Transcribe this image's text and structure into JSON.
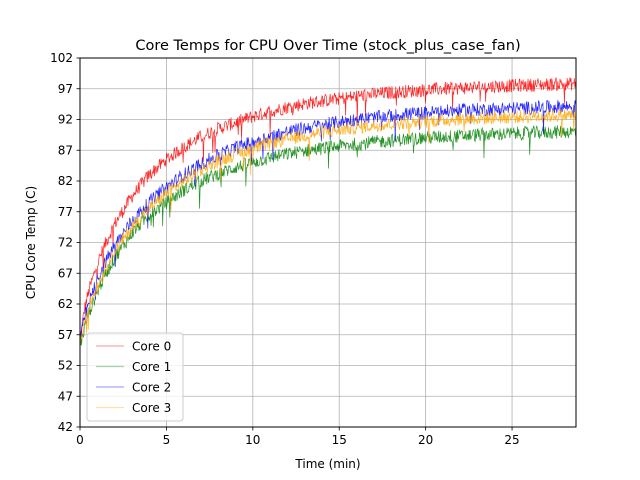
{
  "chart_data": {
    "type": "line",
    "title": "Core Temps for CPU Over Time (stock_plus_case_fan)",
    "xlabel": "Time (min)",
    "ylabel": "CPU Core Temp (C)",
    "xlim": [
      0,
      28.7
    ],
    "ylim": [
      42,
      102
    ],
    "xticks": [
      0,
      5,
      10,
      15,
      20,
      25
    ],
    "yticks": [
      42,
      47,
      52,
      57,
      62,
      67,
      72,
      77,
      82,
      87,
      92,
      97,
      102
    ],
    "grid": true,
    "legend_position": "lower-left",
    "series": [
      {
        "name": "Core 0",
        "color": "#ff0000",
        "x": [
          0,
          0.25,
          0.5,
          1,
          1.5,
          2,
          3,
          4,
          5,
          6,
          7,
          8,
          9,
          10,
          11,
          12,
          13,
          14,
          15,
          16,
          17,
          18,
          19,
          20,
          21,
          22,
          23,
          24,
          25,
          26,
          27,
          28,
          28.7
        ],
        "y": [
          56,
          61,
          64,
          68.5,
          72,
          75,
          79.5,
          83,
          85.5,
          87.5,
          89.2,
          90.5,
          91.5,
          92.5,
          93.3,
          94,
          94.6,
          95,
          95.4,
          95.8,
          96.1,
          96.4,
          96.6,
          96.8,
          97,
          97.1,
          97.3,
          97.4,
          97.5,
          97.6,
          97.7,
          97.8,
          97.8
        ]
      },
      {
        "name": "Core 1",
        "color": "#008000",
        "x": [
          0,
          0.25,
          0.5,
          1,
          1.5,
          2,
          3,
          4,
          5,
          6,
          7,
          8,
          9,
          10,
          11,
          12,
          13,
          14,
          15,
          16,
          17,
          18,
          19,
          20,
          21,
          22,
          23,
          24,
          25,
          26,
          27,
          28,
          28.7
        ],
        "y": [
          55,
          58,
          60.5,
          64,
          67,
          69.5,
          73.5,
          76.5,
          78.5,
          80.5,
          82,
          83.2,
          84.2,
          85,
          85.8,
          86.4,
          86.9,
          87.3,
          87.7,
          88,
          88.3,
          88.6,
          88.8,
          89,
          89.2,
          89.3,
          89.5,
          89.6,
          89.7,
          89.8,
          89.9,
          90,
          90
        ]
      },
      {
        "name": "Core 2",
        "color": "#0000ff",
        "x": [
          0,
          0.25,
          0.5,
          1,
          1.5,
          2,
          3,
          4,
          5,
          6,
          7,
          8,
          9,
          10,
          11,
          12,
          13,
          14,
          15,
          16,
          17,
          18,
          19,
          20,
          21,
          22,
          23,
          24,
          25,
          26,
          27,
          28,
          28.7
        ],
        "y": [
          56,
          59.5,
          62,
          66,
          69,
          71.5,
          75.5,
          78.5,
          81,
          83,
          84.8,
          86.2,
          87.4,
          88.4,
          89.2,
          90,
          90.6,
          91.1,
          91.6,
          92,
          92.3,
          92.6,
          92.9,
          93.1,
          93.3,
          93.5,
          93.6,
          93.7,
          93.8,
          93.9,
          94,
          94.1,
          94.1
        ]
      },
      {
        "name": "Core 3",
        "color": "#ffa500",
        "x": [
          0,
          0.25,
          0.5,
          1,
          1.5,
          2,
          3,
          4,
          5,
          6,
          7,
          8,
          9,
          10,
          11,
          12,
          13,
          14,
          15,
          16,
          17,
          18,
          19,
          20,
          21,
          22,
          23,
          24,
          25,
          26,
          27,
          28,
          28.7
        ],
        "y": [
          55.5,
          59,
          61.5,
          65,
          68,
          70.5,
          74.5,
          77.5,
          80,
          82,
          83.8,
          85.2,
          86.4,
          87.3,
          88.1,
          88.8,
          89.4,
          89.9,
          90.3,
          90.7,
          91,
          91.3,
          91.5,
          91.7,
          91.9,
          92.1,
          92.2,
          92.3,
          92.4,
          92.5,
          92.6,
          92.7,
          92.7
        ]
      }
    ]
  }
}
